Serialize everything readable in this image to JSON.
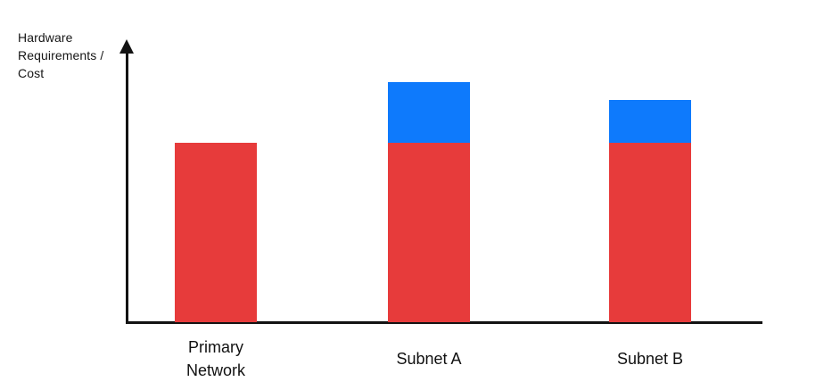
{
  "chart_data": {
    "type": "bar",
    "stacked": true,
    "title": "",
    "xlabel": "",
    "ylabel": "Hardware Requirements / Cost",
    "categories": [
      "Primary Network",
      "Subnet A",
      "Subnet B"
    ],
    "series": [
      {
        "name": "red-base-segment",
        "color": "#E73B3B",
        "values": [
          100,
          100,
          100
        ]
      },
      {
        "name": "blue-top-segment",
        "color": "#0E7AFC",
        "values": [
          0,
          34,
          24
        ]
      }
    ],
    "ylim": [
      0,
      157
    ],
    "y_tick_labels": [],
    "x_tick_labels": [
      "Primary Network",
      "Subnet A",
      "Subnet B"
    ],
    "legend": "none",
    "grid": false,
    "axis_color": "#131313",
    "label_color": "#111111"
  }
}
